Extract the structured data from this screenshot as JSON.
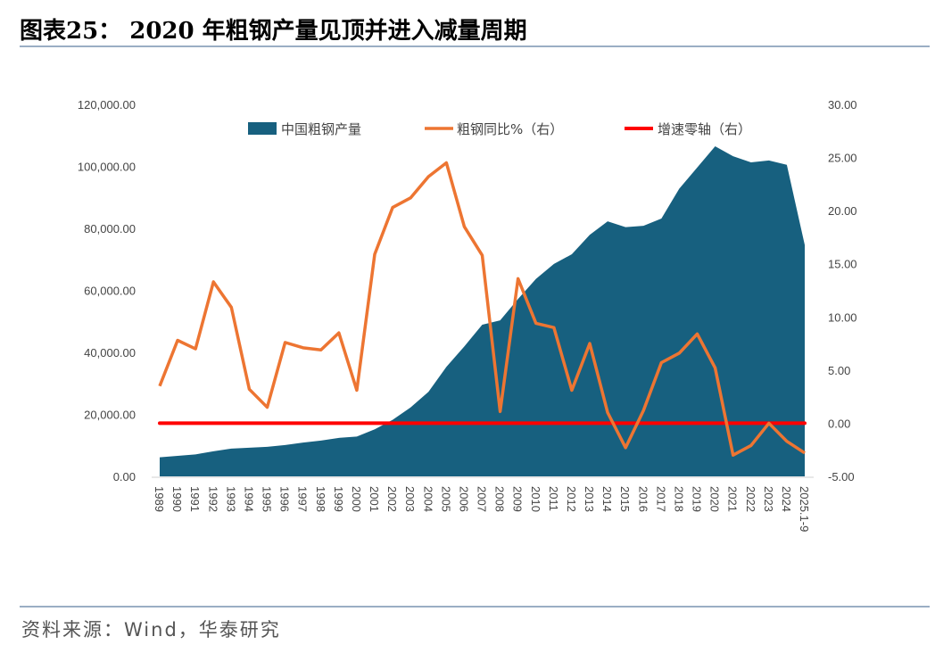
{
  "title": "图表25： 2020 年粗钢产量见顶并进入减量周期",
  "source": "资料来源：Wind，华泰研究",
  "colors": {
    "area": "#17607f",
    "growth": "#ed7532",
    "zero": "#ff0000"
  },
  "chart_data": {
    "type": "area+line",
    "categories": [
      "1989",
      "1990",
      "1991",
      "1992",
      "1993",
      "1994",
      "1995",
      "1996",
      "1997",
      "1998",
      "1999",
      "2000",
      "2001",
      "2002",
      "2003",
      "2004",
      "2005",
      "2006",
      "2007",
      "2008",
      "2009",
      "2010",
      "2011",
      "2012",
      "2013",
      "2014",
      "2015",
      "2016",
      "2017",
      "2018",
      "2019",
      "2020",
      "2021",
      "2022",
      "2023",
      "2024",
      "2025.1-9"
    ],
    "left_axis": {
      "ylim": [
        0,
        120000
      ],
      "ticks": [
        "0.00",
        "20,000.00",
        "40,000.00",
        "60,000.00",
        "80,000.00",
        "100,000.00",
        "120,000.00"
      ]
    },
    "right_axis": {
      "ylim": [
        -5,
        30
      ],
      "ticks": [
        "-5.00",
        "0.00",
        "5.00",
        "10.00",
        "15.00",
        "20.00",
        "25.00",
        "30.00"
      ]
    },
    "legend_position": "top",
    "series": [
      {
        "name": "中国粗钢产量",
        "type": "area",
        "axis": "left",
        "values": [
          6159,
          6635,
          7100,
          8094,
          8956,
          9261,
          9536,
          10124,
          10894,
          11559,
          12426,
          12850,
          15163,
          18237,
          22234,
          27280,
          35324,
          41915,
          48929,
          50306,
          57218,
          63723,
          68528,
          71654,
          77904,
          82270,
          80383,
          80837,
          83173,
          92826,
          99634,
          106477,
          103279,
          101300,
          101908,
          100509,
          74625
        ]
      },
      {
        "name": "粗钢同比%（右）",
        "type": "line",
        "axis": "right",
        "values": [
          3.5,
          7.8,
          7.0,
          13.3,
          10.9,
          3.2,
          1.5,
          7.6,
          7.1,
          6.9,
          8.5,
          3.1,
          15.9,
          20.3,
          21.2,
          23.2,
          24.5,
          18.5,
          15.8,
          1.1,
          13.6,
          9.4,
          9.0,
          3.1,
          7.5,
          1.0,
          -2.3,
          1.2,
          5.7,
          6.6,
          8.4,
          5.2,
          -3.0,
          -2.1,
          0.0,
          -1.7,
          -2.8
        ]
      },
      {
        "name": "增速零轴（右）",
        "type": "line",
        "axis": "right",
        "constant": 0
      }
    ]
  }
}
